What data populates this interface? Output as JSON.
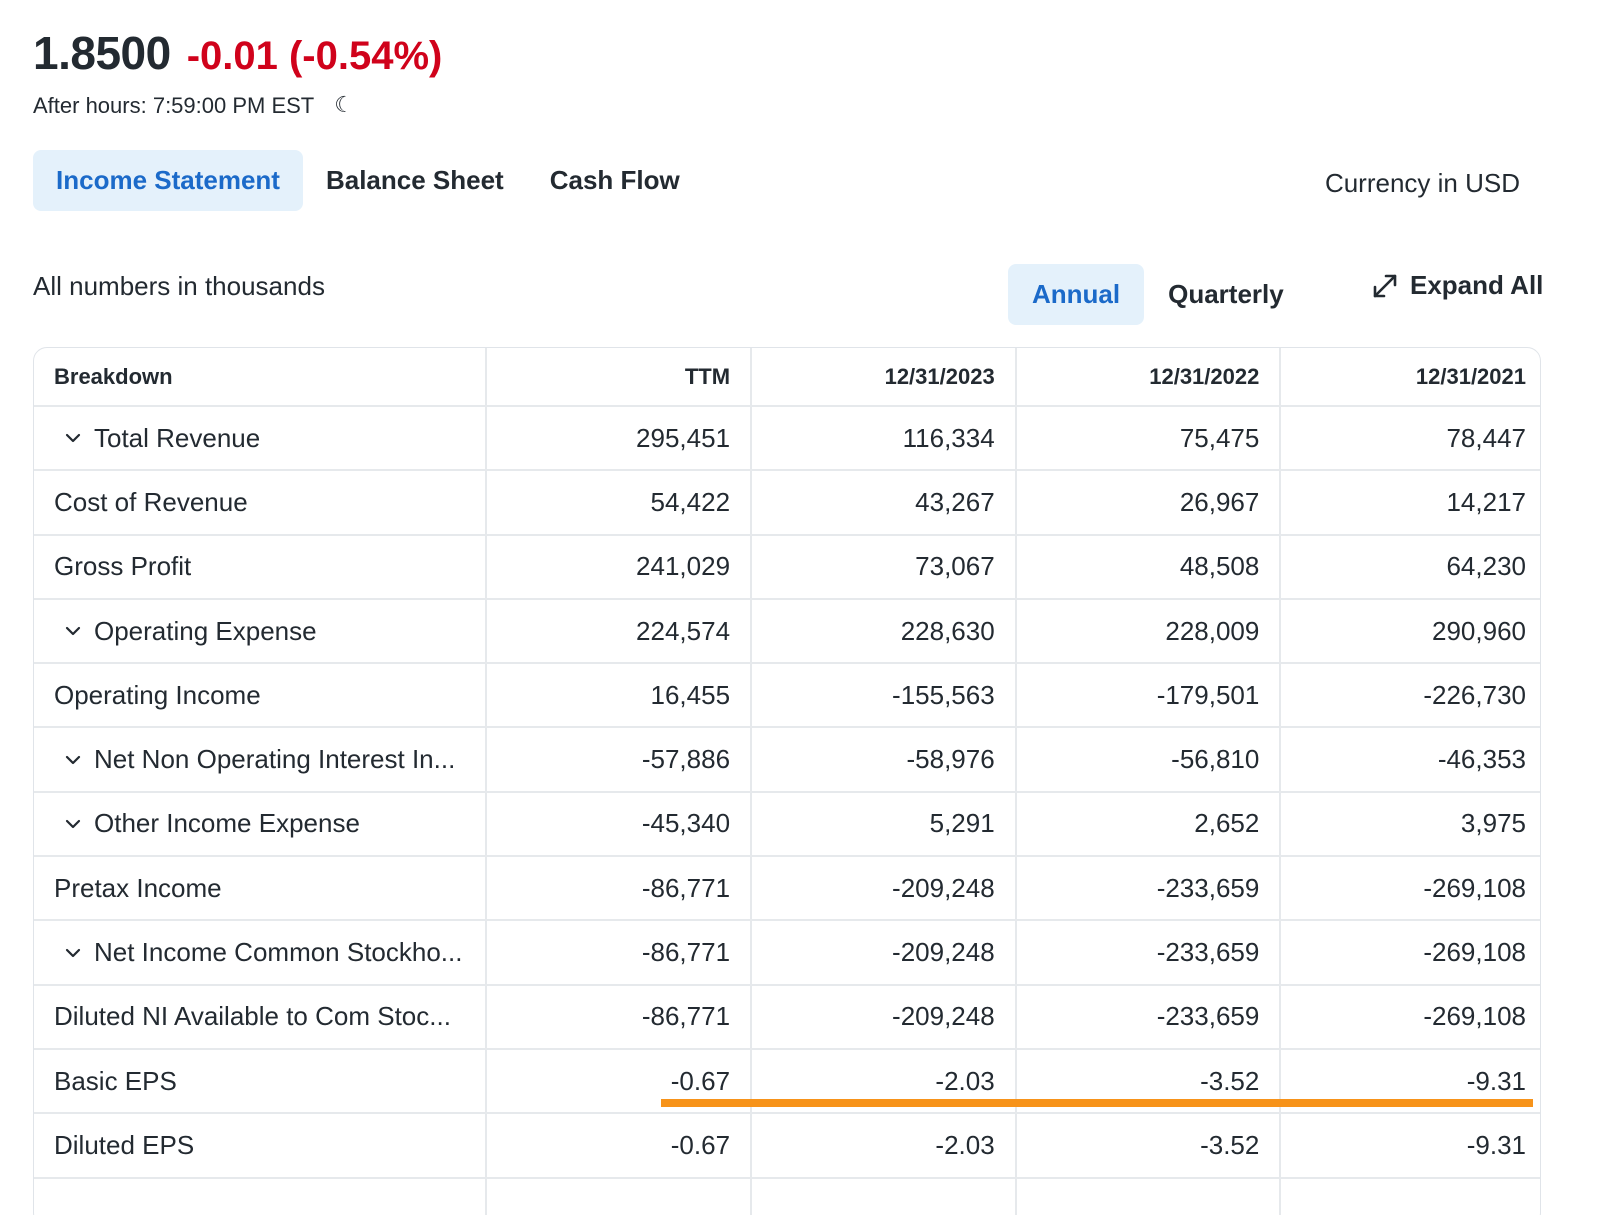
{
  "quote": {
    "price": "1.8500",
    "change": "-0.01 (-0.54%)",
    "after_hours": "After hours: 7:59:00 PM EST",
    "moon_icon": "moon-icon"
  },
  "tabs": [
    {
      "label": "Income Statement",
      "active": true
    },
    {
      "label": "Balance Sheet",
      "active": false
    },
    {
      "label": "Cash Flow",
      "active": false
    }
  ],
  "currency_note": "Currency in USD",
  "numbers_note": "All numbers in thousands",
  "frequency": {
    "annual": "Annual",
    "quarterly": "Quarterly",
    "selected": "Annual"
  },
  "expand_all": "Expand All",
  "colors": {
    "negative": "#d0021b",
    "accent": "#1b6ac9",
    "active_bg": "#e4f1fb",
    "highlight": "#f7931a"
  },
  "table": {
    "columns": [
      "Breakdown",
      "TTM",
      "12/31/2023",
      "12/31/2022",
      "12/31/2021"
    ],
    "rows": [
      {
        "label": "Total Revenue",
        "expandable": true,
        "values": [
          "295,451",
          "116,334",
          "75,475",
          "78,447"
        ]
      },
      {
        "label": "Cost of Revenue",
        "expandable": false,
        "values": [
          "54,422",
          "43,267",
          "26,967",
          "14,217"
        ]
      },
      {
        "label": "Gross Profit",
        "expandable": false,
        "values": [
          "241,029",
          "73,067",
          "48,508",
          "64,230"
        ]
      },
      {
        "label": "Operating Expense",
        "expandable": true,
        "values": [
          "224,574",
          "228,630",
          "228,009",
          "290,960"
        ]
      },
      {
        "label": "Operating Income",
        "expandable": false,
        "values": [
          "16,455",
          "-155,563",
          "-179,501",
          "-226,730"
        ]
      },
      {
        "label": "Net Non Operating Interest In...",
        "expandable": true,
        "values": [
          "-57,886",
          "-58,976",
          "-56,810",
          "-46,353"
        ]
      },
      {
        "label": "Other Income Expense",
        "expandable": true,
        "values": [
          "-45,340",
          "5,291",
          "2,652",
          "3,975"
        ]
      },
      {
        "label": "Pretax Income",
        "expandable": false,
        "values": [
          "-86,771",
          "-209,248",
          "-233,659",
          "-269,108"
        ]
      },
      {
        "label": "Net Income Common Stockho...",
        "expandable": true,
        "values": [
          "-86,771",
          "-209,248",
          "-233,659",
          "-269,108"
        ]
      },
      {
        "label": "Diluted NI Available to Com Stoc...",
        "expandable": false,
        "values": [
          "-86,771",
          "-209,248",
          "-233,659",
          "-269,108"
        ]
      },
      {
        "label": "Basic EPS",
        "expandable": false,
        "values": [
          "-0.67",
          "-2.03",
          "-3.52",
          "-9.31"
        ]
      },
      {
        "label": "Diluted EPS",
        "expandable": false,
        "values": [
          "-0.67",
          "-2.03",
          "-3.52",
          "-9.31"
        ]
      },
      {
        "label": "",
        "expandable": false,
        "values": [
          "",
          "",
          "",
          ""
        ]
      }
    ]
  }
}
